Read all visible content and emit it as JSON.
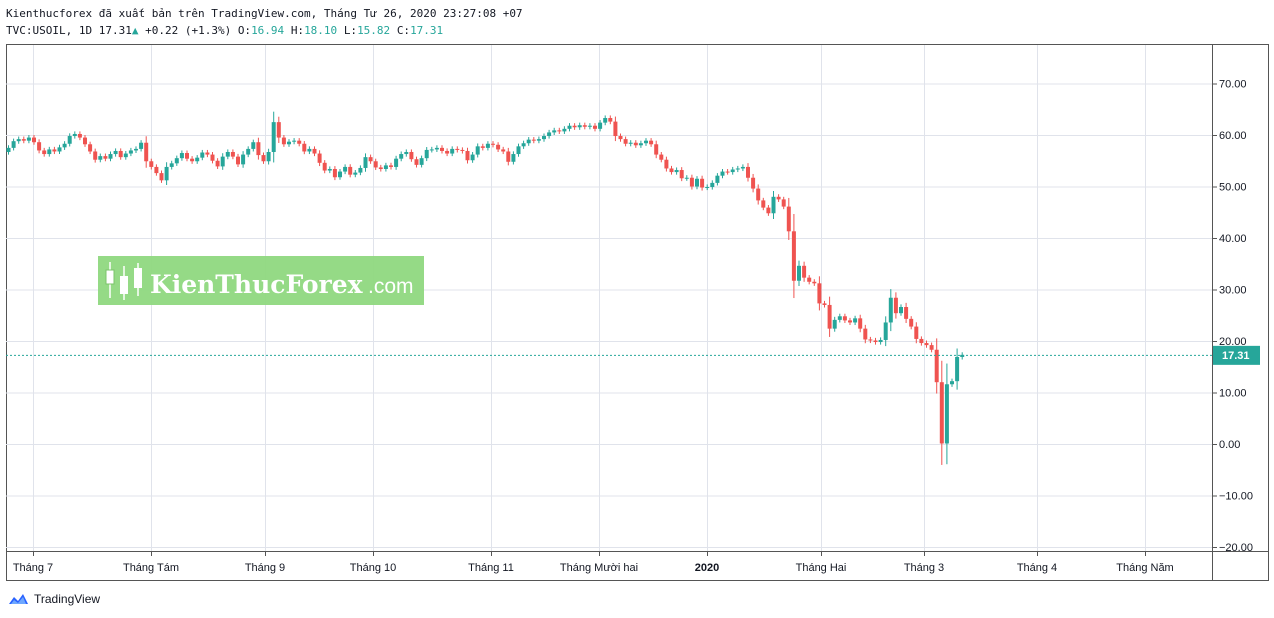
{
  "header": {
    "line1": "Kienthucforex đã xuất bản trên TradingView.com, Tháng Tư 26, 2020 23:27:08 +07",
    "symbol": "TVC:USOIL, 1D",
    "last": "17.31",
    "change": "+0.22 (+1.3%)",
    "o_label": "O:",
    "o_value": "16.94",
    "h_label": "H:",
    "h_value": "18.10",
    "l_label": "L:",
    "l_value": "15.82",
    "c_label": "C:",
    "c_value": "17.31"
  },
  "watermark": {
    "brand": "KienThucForex",
    "suffix": ".com"
  },
  "price_badge": "17.31",
  "footer": {
    "brand": "TradingView"
  },
  "colors": {
    "up": "#26a69a",
    "down": "#ef5350",
    "grid": "#e0e3eb",
    "border": "#555555"
  },
  "chart_data": {
    "type": "candlestick",
    "y_ticks": [
      "70.00",
      "60.00",
      "50.00",
      "40.00",
      "30.00",
      "20.00",
      "10.00",
      "0.00",
      "−10.00",
      "−20.00"
    ],
    "ylim": [
      -21,
      80
    ],
    "x_ticks": [
      {
        "label": "Tháng 7",
        "bold": false
      },
      {
        "label": "Tháng Tám",
        "bold": false
      },
      {
        "label": "Tháng 9",
        "bold": false
      },
      {
        "label": "Tháng 10",
        "bold": false
      },
      {
        "label": "Tháng 11",
        "bold": false
      },
      {
        "label": "Tháng Mười hai",
        "bold": false
      },
      {
        "label": "2020",
        "bold": true
      },
      {
        "label": "Tháng Hai",
        "bold": false
      },
      {
        "label": "Tháng 3",
        "bold": false
      },
      {
        "label": "Tháng 4",
        "bold": false
      },
      {
        "label": "Tháng Năm",
        "bold": false
      }
    ],
    "last_price": 17.31,
    "closes": [
      57.5,
      58.8,
      59.2,
      58.9,
      59.5,
      58.6,
      57.0,
      56.3,
      57.2,
      56.8,
      57.6,
      58.3,
      59.8,
      60.2,
      59.5,
      58.2,
      56.8,
      55.2,
      55.9,
      55.4,
      56.3,
      56.9,
      55.7,
      56.4,
      57.0,
      57.3,
      58.5,
      54.9,
      53.8,
      52.6,
      51.2,
      53.8,
      54.5,
      55.5,
      56.5,
      55.4,
      54.9,
      55.6,
      56.6,
      56.2,
      55.0,
      53.9,
      55.8,
      56.7,
      55.8,
      54.3,
      56.2,
      57.3,
      58.6,
      56.1,
      54.9,
      56.7,
      62.5,
      59.5,
      58.2,
      58.7,
      58.9,
      58.3,
      56.8,
      57.3,
      56.4,
      54.6,
      53.1,
      53.4,
      51.8,
      52.9,
      53.8,
      52.3,
      52.7,
      53.6,
      55.7,
      54.9,
      53.7,
      53.4,
      54.1,
      53.8,
      55.4,
      56.3,
      56.7,
      55.3,
      54.2,
      55.5,
      57.1,
      57.2,
      57.5,
      56.9,
      56.4,
      57.3,
      57.1,
      56.9,
      55.1,
      56.2,
      57.8,
      57.5,
      58.3,
      58.1,
      57.2,
      56.8,
      54.8,
      56.3,
      57.8,
      58.4,
      59.1,
      58.9,
      59.2,
      59.8,
      60.5,
      60.9,
      60.7,
      61.2,
      61.8,
      61.5,
      61.9,
      61.6,
      61.8,
      61.2,
      62.4,
      63.3,
      62.6,
      59.8,
      59.2,
      58.3,
      58.5,
      58.0,
      58.4,
      58.9,
      58.2,
      56.2,
      55.2,
      53.5,
      52.8,
      53.2,
      51.6,
      51.7,
      50.0,
      51.5,
      49.8,
      49.9,
      50.7,
      52.1,
      52.9,
      52.8,
      53.3,
      53.5,
      53.8,
      51.7,
      49.6,
      47.3,
      45.9,
      44.8,
      48.0,
      47.5,
      46.1,
      41.3,
      31.7,
      34.6,
      32.3,
      31.5,
      31.2,
      27.3,
      27.0,
      22.4,
      24.1,
      24.8,
      24.0,
      23.6,
      24.4,
      22.4,
      20.3,
      20.1,
      19.8,
      20.2,
      23.6,
      28.4,
      25.4,
      26.6,
      24.3,
      22.8,
      20.4,
      19.6,
      19.2,
      18.3,
      12.0,
      0.1,
      11.6,
      12.2,
      16.9,
      17.31
    ],
    "series": [
      {
        "name": "TVC:USOIL",
        "values_key": "closes"
      }
    ]
  }
}
